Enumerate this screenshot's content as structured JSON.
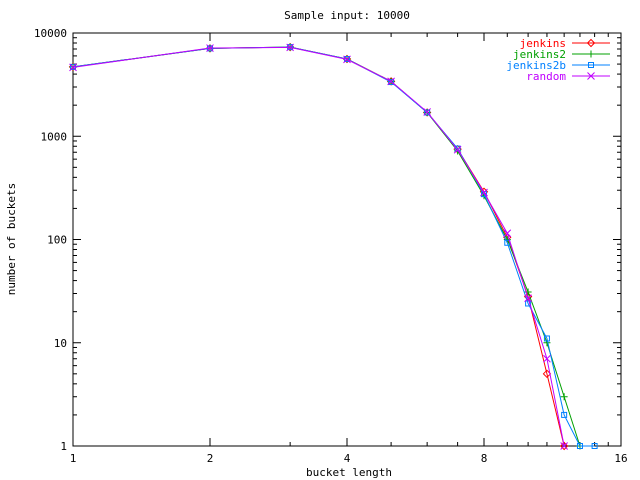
{
  "chart_data": {
    "type": "line",
    "title": "Sample input: 10000",
    "xlabel": "bucket length",
    "ylabel": "number of buckets",
    "x_scale": "log2",
    "y_scale": "log10",
    "xlim": [
      1,
      16
    ],
    "ylim": [
      1,
      10000
    ],
    "x_ticks": [
      1,
      2,
      4,
      8,
      16
    ],
    "x_tick_labels": [
      "1",
      "2",
      "4",
      "8",
      "16"
    ],
    "y_ticks": [
      1,
      10,
      100,
      1000,
      10000
    ],
    "y_tick_labels": [
      "1",
      "10",
      "100",
      "1000",
      "10000"
    ],
    "grid": false,
    "legend_position": "top-right",
    "series": [
      {
        "name": "jenkins",
        "color": "#ff0000",
        "marker": "diamond",
        "points": [
          [
            1,
            4700
          ],
          [
            2,
            7100
          ],
          [
            3,
            7300
          ],
          [
            4,
            5600
          ],
          [
            5,
            3400
          ],
          [
            6,
            1700
          ],
          [
            7,
            750
          ],
          [
            8,
            290
          ],
          [
            9,
            105
          ],
          [
            10,
            28
          ],
          [
            11,
            5
          ],
          [
            12,
            1
          ]
        ]
      },
      {
        "name": "jenkins2",
        "color": "#00a000",
        "marker": "plus",
        "points": [
          [
            1,
            4700
          ],
          [
            2,
            7100
          ],
          [
            3,
            7300
          ],
          [
            4,
            5600
          ],
          [
            5,
            3400
          ],
          [
            6,
            1700
          ],
          [
            7,
            720
          ],
          [
            8,
            265
          ],
          [
            9,
            100
          ],
          [
            10,
            31
          ],
          [
            11,
            10
          ],
          [
            12,
            3
          ],
          [
            13,
            1
          ]
        ]
      },
      {
        "name": "jenkins2b",
        "color": "#0080ff",
        "marker": "square",
        "points": [
          [
            1,
            4700
          ],
          [
            2,
            7100
          ],
          [
            3,
            7300
          ],
          [
            4,
            5600
          ],
          [
            5,
            3350
          ],
          [
            6,
            1700
          ],
          [
            7,
            760
          ],
          [
            8,
            275
          ],
          [
            9,
            93
          ],
          [
            10,
            24
          ],
          [
            11,
            11
          ],
          [
            12,
            2
          ],
          [
            13,
            1
          ],
          [
            14,
            1
          ]
        ]
      },
      {
        "name": "random",
        "color": "#c000ff",
        "marker": "x",
        "points": [
          [
            1,
            4650
          ],
          [
            2,
            7150
          ],
          [
            3,
            7250
          ],
          [
            4,
            5550
          ],
          [
            5,
            3400
          ],
          [
            6,
            1720
          ],
          [
            7,
            740
          ],
          [
            8,
            285
          ],
          [
            9,
            115
          ],
          [
            10,
            27
          ],
          [
            11,
            7
          ],
          [
            12,
            1
          ]
        ]
      }
    ]
  }
}
